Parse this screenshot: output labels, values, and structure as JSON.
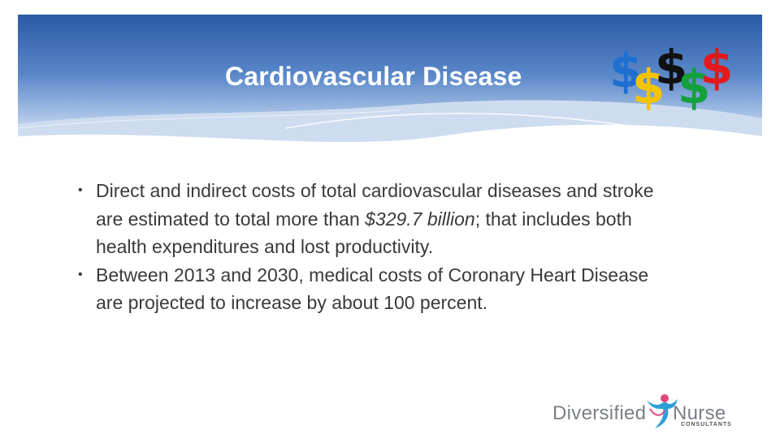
{
  "slide": {
    "title": "Cardiovascular Disease",
    "bullets": [
      {
        "before": "Direct and indirect costs of total cardiovascular diseases and stroke are estimated to total more than ",
        "emphasis": "$329.7 billion",
        "after": "; that includes both health expenditures and lost productivity."
      },
      {
        "before": "Between 2013 and 2030, medical costs of Coronary Heart Disease are projected to increase by about 100 percent.",
        "emphasis": "",
        "after": ""
      }
    ],
    "bullet_symbol": "•"
  },
  "dollar_signs": {
    "symbol": "$",
    "colors": [
      "#1f6fd1",
      "#f5c400",
      "#111111",
      "#14a03c",
      "#e3191c"
    ]
  },
  "logo": {
    "left_text": "Diversified",
    "right_text": "Nurse",
    "subtitle": "CONSULTANTS",
    "icon": "person-figure-icon"
  },
  "colors": {
    "header_blue_dark": "#2e5ea8",
    "header_blue_light": "#a9c3e6",
    "text": "#3a3a3a"
  }
}
